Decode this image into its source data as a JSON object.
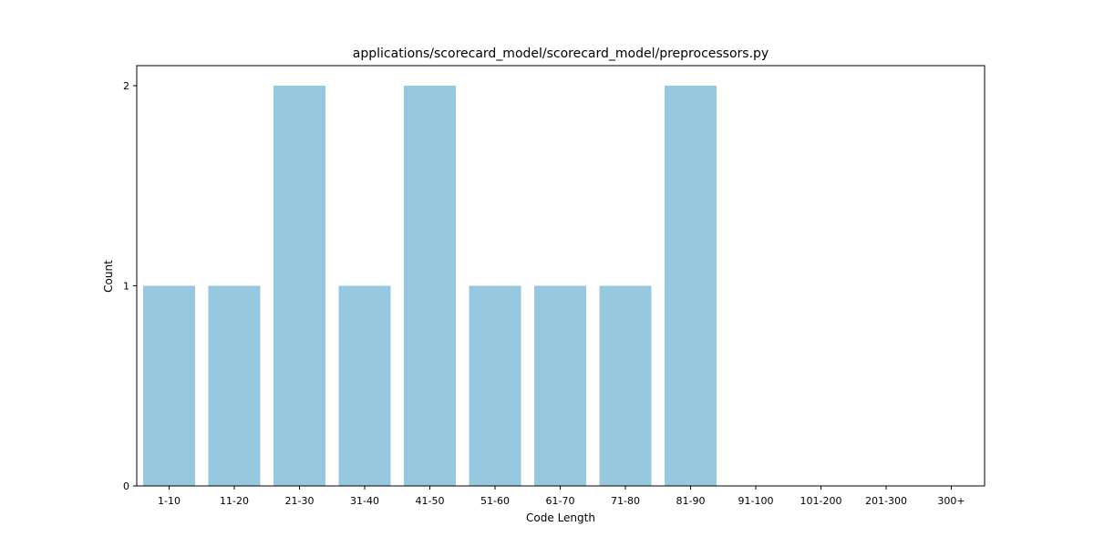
{
  "chart_data": {
    "type": "bar",
    "title": "applications/scorecard_model/scorecard_model/preprocessors.py",
    "xlabel": "Code Length",
    "ylabel": "Count",
    "categories": [
      "1-10",
      "11-20",
      "21-30",
      "31-40",
      "41-50",
      "51-60",
      "61-70",
      "71-80",
      "81-90",
      "91-100",
      "101-200",
      "201-300",
      "300+"
    ],
    "values": [
      1,
      1,
      2,
      1,
      2,
      1,
      1,
      1,
      2,
      0,
      0,
      0,
      0
    ],
    "ylim": [
      0,
      2.1
    ],
    "yticks": [
      0,
      1,
      2
    ],
    "grid": false,
    "bar_color": "#96c9df"
  }
}
